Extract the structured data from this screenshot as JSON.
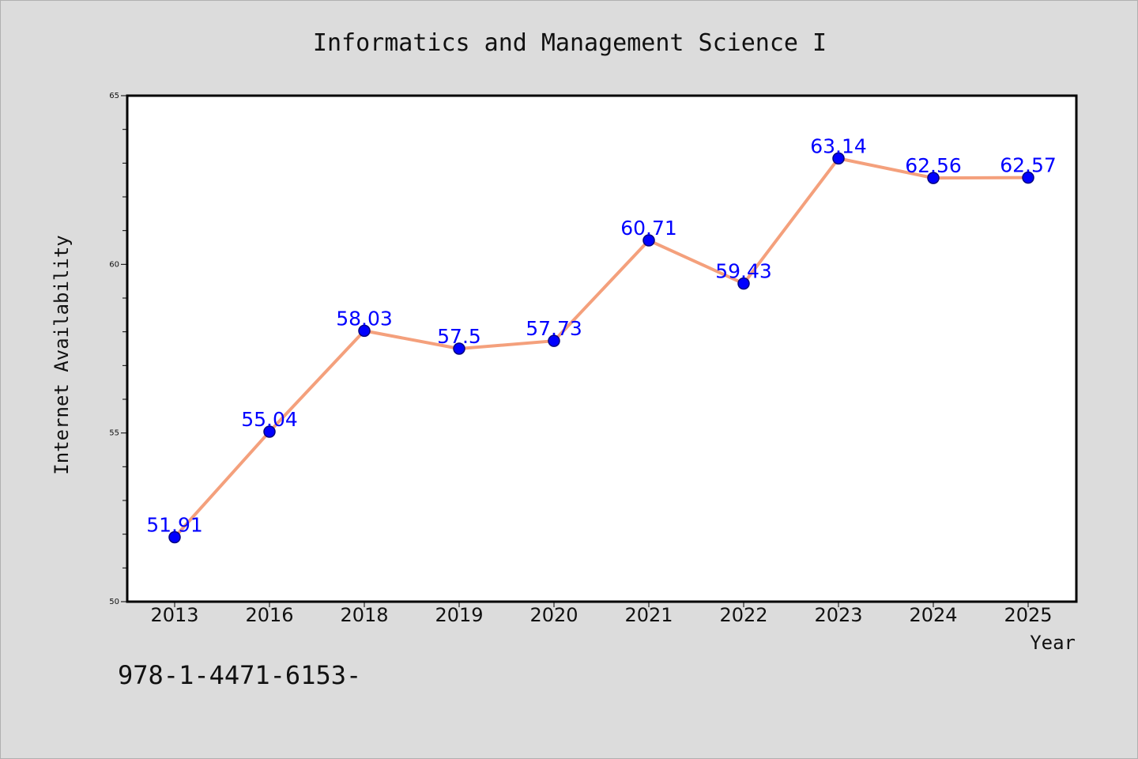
{
  "chart_data": {
    "type": "line",
    "title": "Informatics and Management Science I",
    "xlabel": "Year",
    "ylabel": "Internet Availability",
    "categories": [
      "2013",
      "2016",
      "2018",
      "2019",
      "2020",
      "2021",
      "2022",
      "2023",
      "2024",
      "2025"
    ],
    "series": [
      {
        "values": [
          51.91,
          55.04,
          58.03,
          57.5,
          57.73,
          60.71,
          59.43,
          63.14,
          62.56,
          62.57
        ]
      }
    ],
    "ylim": [
      50,
      65
    ],
    "yticks": [
      "50",
      "55",
      "60",
      "65"
    ],
    "grid": false,
    "legend": "none",
    "colors": {
      "line": "#f4a07c",
      "marker": "#0000ff",
      "marker_edge": "#000080",
      "data_label": "#0000ff",
      "background": "#dcdcdc",
      "plot_background": "#ffffff",
      "frame": "#000000"
    }
  },
  "footer": {
    "text": "978-1-4471-6153-"
  }
}
